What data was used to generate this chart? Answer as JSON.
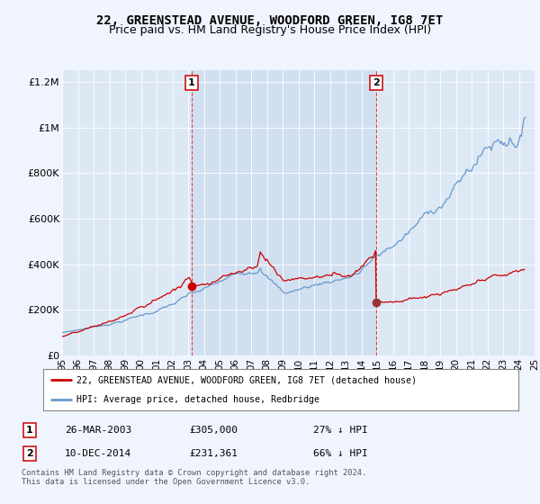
{
  "title": "22, GREENSTEAD AVENUE, WOODFORD GREEN, IG8 7ET",
  "subtitle": "Price paid vs. HM Land Registry's House Price Index (HPI)",
  "title_fontsize": 10,
  "subtitle_fontsize": 9,
  "background_color": "#f0f4ff",
  "plot_bg_color": "#dde8f5",
  "legend_label_red": "22, GREENSTEAD AVENUE, WOODFORD GREEN, IG8 7ET (detached house)",
  "legend_label_blue": "HPI: Average price, detached house, Redbridge",
  "footer": "Contains HM Land Registry data © Crown copyright and database right 2024.\nThis data is licensed under the Open Government Licence v3.0.",
  "sale1_date": "26-MAR-2003",
  "sale1_price": "£305,000",
  "sale1_hpi": "27% ↓ HPI",
  "sale1_year": 2003.23,
  "sale1_value": 305000,
  "sale2_date": "10-DEC-2014",
  "sale2_price": "£231,361",
  "sale2_hpi": "66% ↓ HPI",
  "sale2_year": 2014.94,
  "sale2_value": 231361,
  "ylim_min": 0,
  "ylim_max": 1250000,
  "yticks": [
    0,
    200000,
    400000,
    600000,
    800000,
    1000000,
    1200000
  ],
  "ytick_labels": [
    "£0",
    "£200K",
    "£400K",
    "£600K",
    "£800K",
    "£1M",
    "£1.2M"
  ],
  "red_color": "#cc0000",
  "blue_color": "#6699cc",
  "shade_color": "#ccd9ee",
  "xtick_years": [
    1995,
    1996,
    1997,
    1998,
    1999,
    2000,
    2001,
    2002,
    2003,
    2004,
    2005,
    2006,
    2007,
    2008,
    2009,
    2010,
    2011,
    2012,
    2013,
    2014,
    2015,
    2016,
    2017,
    2018,
    2019,
    2020,
    2021,
    2022,
    2023,
    2024,
    2025
  ]
}
